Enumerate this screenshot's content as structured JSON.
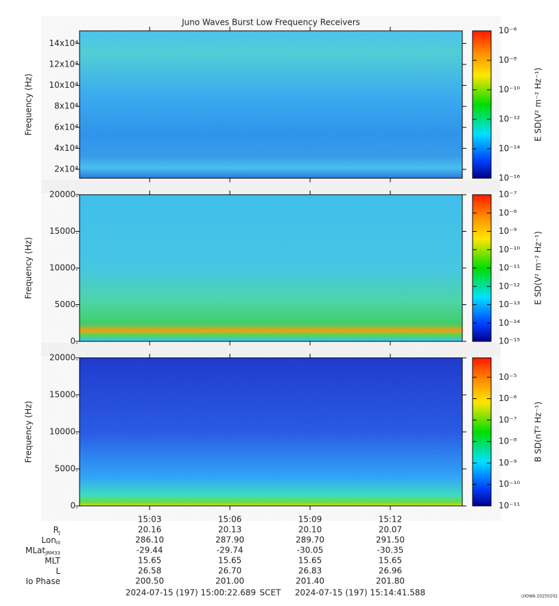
{
  "chart_data": [
    {
      "type": "spectrogram",
      "title": "Juno Waves Burst Low Frequency Receivers",
      "ylabel": "Frequency (Hz)",
      "ylim": [
        11500,
        152000
      ],
      "yticks": [
        {
          "value": 20000,
          "label": "2x10⁴"
        },
        {
          "value": 40000,
          "label": "4x10⁴"
        },
        {
          "value": 60000,
          "label": "6x10⁴"
        },
        {
          "value": 80000,
          "label": "8x10⁴"
        },
        {
          "value": 100000,
          "label": "10x10⁴"
        },
        {
          "value": 120000,
          "label": "12x10⁴"
        },
        {
          "value": 140000,
          "label": "14x10⁴"
        }
      ],
      "colorbar_label": "E SD(V² m⁻² Hz⁻¹)",
      "clim": [
        1e-16,
        1e-06
      ],
      "clog": true,
      "cticks": [
        {
          "value": 1e-16,
          "label": "10⁻¹⁶"
        },
        {
          "value": 1e-14,
          "label": "10⁻¹⁴"
        },
        {
          "value": 1e-12,
          "label": "10⁻¹²"
        },
        {
          "value": 1e-10,
          "label": "10⁻¹⁰"
        },
        {
          "value": 1e-08,
          "label": "10⁻⁸"
        },
        {
          "value": 1e-06,
          "label": "10⁻⁶"
        }
      ]
    },
    {
      "type": "spectrogram",
      "ylabel": "Frequency (Hz)",
      "ylim": [
        0,
        20000
      ],
      "yticks": [
        {
          "value": 0,
          "label": "0."
        },
        {
          "value": 5000,
          "label": "5000."
        },
        {
          "value": 10000,
          "label": "10000."
        },
        {
          "value": 15000,
          "label": "15000."
        },
        {
          "value": 20000,
          "label": "20000."
        }
      ],
      "colorbar_label": "E SD(V² m⁻² Hz⁻¹)",
      "clim": [
        1e-15,
        1e-07
      ],
      "clog": true,
      "cticks": [
        {
          "value": 1e-15,
          "label": "10⁻¹⁵"
        },
        {
          "value": 1e-14,
          "label": "10⁻¹⁴"
        },
        {
          "value": 1e-13,
          "label": "10⁻¹³"
        },
        {
          "value": 1e-12,
          "label": "10⁻¹²"
        },
        {
          "value": 1e-11,
          "label": "10⁻¹¹"
        },
        {
          "value": 1e-10,
          "label": "10⁻¹⁰"
        },
        {
          "value": 1e-09,
          "label": "10⁻⁹"
        },
        {
          "value": 1e-08,
          "label": "10⁻⁸"
        },
        {
          "value": 1e-07,
          "label": "10⁻⁷"
        }
      ]
    },
    {
      "type": "spectrogram",
      "ylabel": "Frequency (Hz)",
      "ylim": [
        0,
        20000
      ],
      "yticks": [
        {
          "value": 0,
          "label": "0."
        },
        {
          "value": 5000,
          "label": "5000."
        },
        {
          "value": 10000,
          "label": "10000."
        },
        {
          "value": 15000,
          "label": "15000."
        },
        {
          "value": 20000,
          "label": "20000."
        }
      ],
      "colorbar_label": "B SD(nT² Hz⁻¹)",
      "clim": [
        1e-11,
        8e-05
      ],
      "clog": true,
      "cticks": [
        {
          "value": 1e-11,
          "label": "10⁻¹¹"
        },
        {
          "value": 1e-10,
          "label": "10⁻¹⁰"
        },
        {
          "value": 1e-09,
          "label": "10⁻⁹"
        },
        {
          "value": 1e-08,
          "label": "10⁻⁸"
        },
        {
          "value": 1e-07,
          "label": "10⁻⁷"
        },
        {
          "value": 1e-06,
          "label": "10⁻⁶"
        },
        {
          "value": 1e-05,
          "label": "10⁻⁵"
        }
      ],
      "xlim": [
        "2024-07-15T15:00:22.689Z",
        "2024-07-15T15:14:41.588Z"
      ],
      "xticks": [
        {
          "value": "2024-07-15T15:03:00Z",
          "label": "15:03"
        },
        {
          "value": "2024-07-15T15:06:00Z",
          "label": "15:06"
        },
        {
          "value": "2024-07-15T15:09:00Z",
          "label": "15:09"
        },
        {
          "value": "2024-07-15T15:12:00Z",
          "label": "15:12"
        }
      ]
    }
  ],
  "ephemeris": {
    "rows": [
      {
        "label": "R",
        "sub": "J",
        "values": [
          "20.16",
          "20.13",
          "20.10",
          "20.07"
        ]
      },
      {
        "label": "Lon",
        "sub": "III",
        "values": [
          "286.10",
          "287.90",
          "289.70",
          "291.50"
        ]
      },
      {
        "label": "MLat",
        "sub": "JRM33",
        "values": [
          "-29.44",
          "-29.74",
          "-30.05",
          "-30.35"
        ]
      },
      {
        "label": "MLT",
        "values": [
          "15.65",
          "15.65",
          "15.65",
          "15.65"
        ]
      },
      {
        "label": "L",
        "values": [
          "26.58",
          "26.70",
          "26.83",
          "26.96"
        ]
      },
      {
        "label": "Io Phase",
        "values": [
          "200.50",
          "201.00",
          "201.40",
          "201.80"
        ]
      }
    ]
  },
  "footer": {
    "start": "2024-07-15 (197) 15:00:22.689",
    "frame": "SCET",
    "end": "2024-07-15 (197) 15:14:41.588",
    "credit": "UIOWA 20250202"
  }
}
